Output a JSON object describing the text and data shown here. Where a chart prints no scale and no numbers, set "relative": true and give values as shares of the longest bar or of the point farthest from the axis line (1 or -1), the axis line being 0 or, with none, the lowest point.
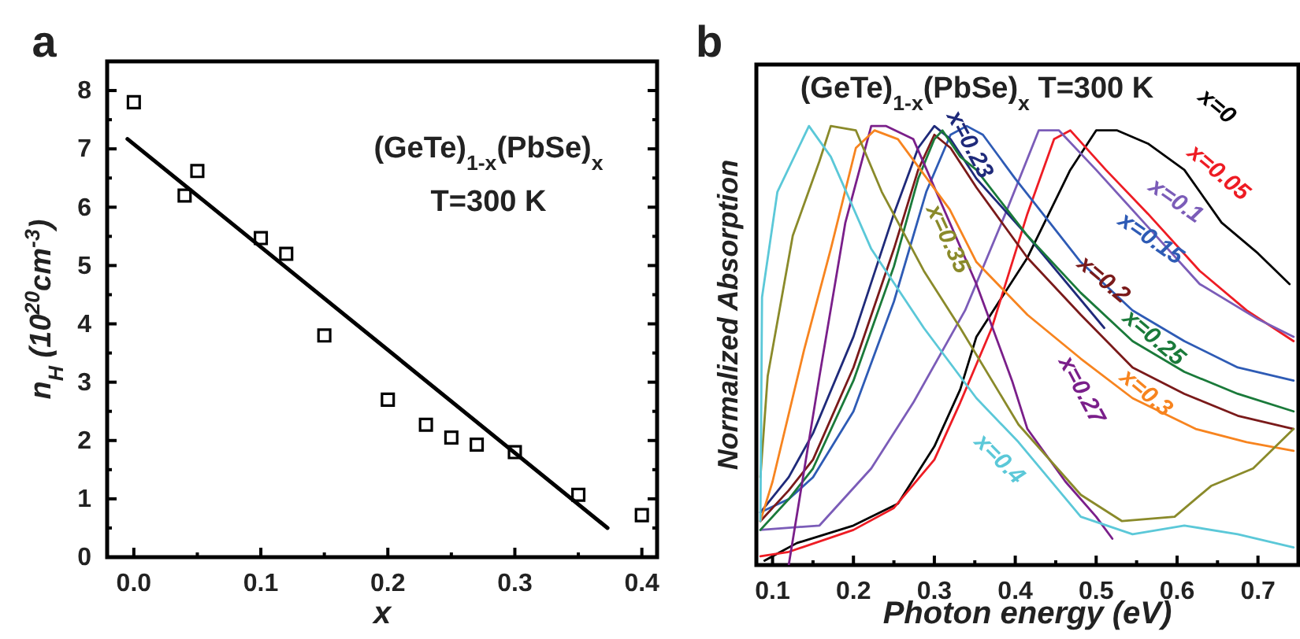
{
  "chart_data": [
    {
      "type": "scatter",
      "title": "a",
      "xlabel": "x",
      "ylabel": "n$_{H}$ (10$^{20}$cm$^{-3}$)",
      "xlim": [
        -0.021,
        0.412
      ],
      "ylim": [
        0,
        8.5
      ],
      "xticks": [
        {
          "value": 0,
          "label": "0.0"
        },
        0.1,
        0.2,
        0.3,
        0.4
      ],
      "yticks": [
        0,
        1,
        2,
        3,
        4,
        5,
        6,
        7,
        8
      ],
      "annotations": [
        "(GeTe)$_{1-x}$(PbSe)$_{x}$",
        "T=300 K"
      ],
      "series": [
        {
          "marker": "square",
          "color": "#000000",
          "x": [
            0,
            0.04,
            0.05,
            0.1,
            0.12,
            0.15,
            0.2,
            0.23,
            0.25,
            0.27,
            0.3,
            0.35,
            0.4
          ],
          "values": [
            7.8,
            6.2,
            6.62,
            5.47,
            5.2,
            3.8,
            2.7,
            2.27,
            2.05,
            1.93,
            1.8,
            1.07,
            0.72
          ]
        },
        {
          "type": "line",
          "color": "#000000",
          "x": [
            -0.005,
            0.373
          ],
          "values": [
            7.17,
            0.5
          ]
        }
      ]
    },
    {
      "type": "line",
      "title": "b",
      "xlabel": "Photon energy (eV)",
      "ylabel": "Normalized Absorption",
      "relative": true,
      "tick_labels": "x",
      "xlim": [
        0.08,
        0.75
      ],
      "xticks": [
        0.1,
        0.2,
        0.3,
        0.4,
        0.5,
        0.6,
        0.7
      ],
      "annotations": [
        "(GeTe)$_{1-x}$(PbSe)$_{x}$  T=300 K"
      ],
      "series": [
        {
          "name": "x=0",
          "color": "#000000",
          "x": [
            0.09,
            0.11,
            0.13,
            0.2,
            0.255,
            0.3,
            0.332,
            0.352,
            0.415,
            0.468,
            0.5,
            0.526,
            0.564,
            0.609,
            0.655,
            0.7,
            0.739
          ],
          "values": [
            0.01,
            0.03,
            0.05,
            0.09,
            0.14,
            0.27,
            0.4,
            0.52,
            0.7,
            0.9,
            0.99,
            0.99,
            0.96,
            0.9,
            0.78,
            0.71,
            0.64
          ]
        },
        {
          "name": "x=0.05",
          "color": "#ee1c24",
          "x": [
            0.085,
            0.12,
            0.2,
            0.25,
            0.3,
            0.332,
            0.371,
            0.415,
            0.448,
            0.468,
            0.512,
            0.564,
            0.628,
            0.686,
            0.744
          ],
          "values": [
            0.02,
            0.03,
            0.08,
            0.13,
            0.24,
            0.37,
            0.54,
            0.8,
            0.97,
            0.99,
            0.9,
            0.8,
            0.67,
            0.58,
            0.51
          ]
        },
        {
          "name": "x=0.1",
          "color": "#7b5cb8",
          "x": [
            0.085,
            0.158,
            0.222,
            0.274,
            0.338,
            0.39,
            0.429,
            0.454,
            0.5,
            0.564,
            0.628,
            0.7,
            0.744
          ],
          "values": [
            0.08,
            0.09,
            0.22,
            0.37,
            0.58,
            0.81,
            0.99,
            0.99,
            0.9,
            0.77,
            0.64,
            0.56,
            0.52
          ]
        },
        {
          "name": "x=0.15",
          "color": "#2e5bb5",
          "x": [
            0.085,
            0.12,
            0.15,
            0.2,
            0.25,
            0.29,
            0.32,
            0.34,
            0.36,
            0.4,
            0.481,
            0.545,
            0.609,
            0.675,
            0.744
          ],
          "values": [
            0.12,
            0.15,
            0.2,
            0.35,
            0.6,
            0.85,
            0.98,
            1.0,
            0.98,
            0.88,
            0.69,
            0.58,
            0.51,
            0.45,
            0.42
          ]
        },
        {
          "name": "x=0.2",
          "color": "#7a1a1a",
          "x": [
            0.085,
            0.12,
            0.15,
            0.2,
            0.25,
            0.28,
            0.3,
            0.32,
            0.352,
            0.415,
            0.481,
            0.545,
            0.609,
            0.675,
            0.744
          ],
          "values": [
            0.1,
            0.17,
            0.24,
            0.45,
            0.72,
            0.9,
            0.98,
            0.95,
            0.86,
            0.7,
            0.57,
            0.45,
            0.39,
            0.34,
            0.31
          ]
        },
        {
          "name": "x=0.23",
          "color": "#1f2a7a",
          "x": [
            0.085,
            0.12,
            0.15,
            0.2,
            0.25,
            0.28,
            0.3,
            0.32,
            0.352,
            0.415,
            0.51
          ],
          "values": [
            0.12,
            0.2,
            0.3,
            0.52,
            0.8,
            0.95,
            1.0,
            0.97,
            0.88,
            0.75,
            0.54
          ]
        },
        {
          "name": "x=0.25",
          "color": "#1a7a3a",
          "x": [
            0.085,
            0.12,
            0.15,
            0.2,
            0.25,
            0.28,
            0.3,
            0.31,
            0.332,
            0.352,
            0.415,
            0.481,
            0.545,
            0.609,
            0.675,
            0.744
          ],
          "values": [
            0.08,
            0.15,
            0.22,
            0.42,
            0.68,
            0.88,
            0.97,
            0.99,
            0.93,
            0.9,
            0.75,
            0.62,
            0.51,
            0.44,
            0.39,
            0.35
          ]
        },
        {
          "name": "x=0.27",
          "color": "#7a1f8a",
          "x": [
            0.12,
            0.158,
            0.19,
            0.222,
            0.24,
            0.274,
            0.319,
            0.352,
            0.396,
            0.415,
            0.462,
            0.5,
            0.52
          ],
          "values": [
            0,
            0.43,
            0.78,
            1.0,
            1.0,
            0.97,
            0.78,
            0.64,
            0.42,
            0.31,
            0.19,
            0.11,
            0.06
          ]
        },
        {
          "name": "x=0.3",
          "color": "#f7841f",
          "x": [
            0.085,
            0.1,
            0.139,
            0.172,
            0.203,
            0.226,
            0.255,
            0.319,
            0.352,
            0.415,
            0.481,
            0.545,
            0.623,
            0.686,
            0.744
          ],
          "values": [
            0.1,
            0.19,
            0.49,
            0.72,
            0.95,
            0.99,
            0.97,
            0.81,
            0.69,
            0.57,
            0.47,
            0.38,
            0.31,
            0.28,
            0.26
          ]
        },
        {
          "name": "x=0.35",
          "color": "#8a8a2a",
          "x": [
            0.085,
            0.094,
            0.125,
            0.158,
            0.172,
            0.203,
            0.235,
            0.287,
            0.332,
            0.404,
            0.481,
            0.532,
            0.597,
            0.642,
            0.694,
            0.744
          ],
          "values": [
            0.2,
            0.43,
            0.75,
            0.92,
            1.0,
            0.99,
            0.85,
            0.67,
            0.54,
            0.32,
            0.16,
            0.1,
            0.11,
            0.18,
            0.22,
            0.31
          ]
        },
        {
          "name": "x=0.4",
          "color": "#5bc8d8",
          "x": [
            0.085,
            0.087,
            0.106,
            0.145,
            0.172,
            0.222,
            0.287,
            0.352,
            0.404,
            0.481,
            0.545,
            0.609,
            0.675,
            0.744
          ],
          "values": [
            0.1,
            0.61,
            0.85,
            1.0,
            0.93,
            0.72,
            0.54,
            0.38,
            0.28,
            0.11,
            0.07,
            0.09,
            0.07,
            0.04
          ]
        }
      ]
    }
  ]
}
